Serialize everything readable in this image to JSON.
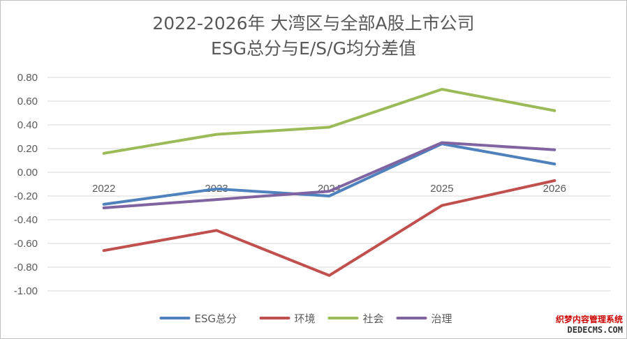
{
  "chart_data": {
    "type": "line",
    "title": "2022-2026年 大湾区与全部A股上市公司",
    "subtitle": "ESG总分与E/S/G均分差值",
    "categories": [
      "2022",
      "2023",
      "2024",
      "2025",
      "2026"
    ],
    "ylim": [
      -1.0,
      0.8
    ],
    "yticks": [
      "0.80",
      "0.60",
      "0.40",
      "0.20",
      "0.00",
      "-0.20",
      "-0.40",
      "-0.60",
      "-0.80",
      "-1.00"
    ],
    "ytick_values": [
      0.8,
      0.6,
      0.4,
      0.2,
      0.0,
      -0.2,
      -0.4,
      -0.6,
      -0.8,
      -1.0
    ],
    "grid": true,
    "legend_position": "bottom",
    "series": [
      {
        "name": "ESG总分",
        "color": "#4f81bd",
        "values": [
          -0.27,
          -0.14,
          -0.2,
          0.24,
          0.07
        ]
      },
      {
        "name": "环境",
        "color": "#c0504d",
        "values": [
          -0.66,
          -0.49,
          -0.87,
          -0.28,
          -0.07
        ]
      },
      {
        "name": "社会",
        "color": "#9bbb59",
        "values": [
          0.16,
          0.32,
          0.38,
          0.7,
          0.52
        ]
      },
      {
        "name": "治理",
        "color": "#8064a2",
        "values": [
          -0.3,
          -0.23,
          -0.16,
          0.25,
          0.19
        ]
      }
    ]
  },
  "watermark": {
    "line1": "织梦内容管理系统",
    "line2": "DEDECMS.COM"
  }
}
